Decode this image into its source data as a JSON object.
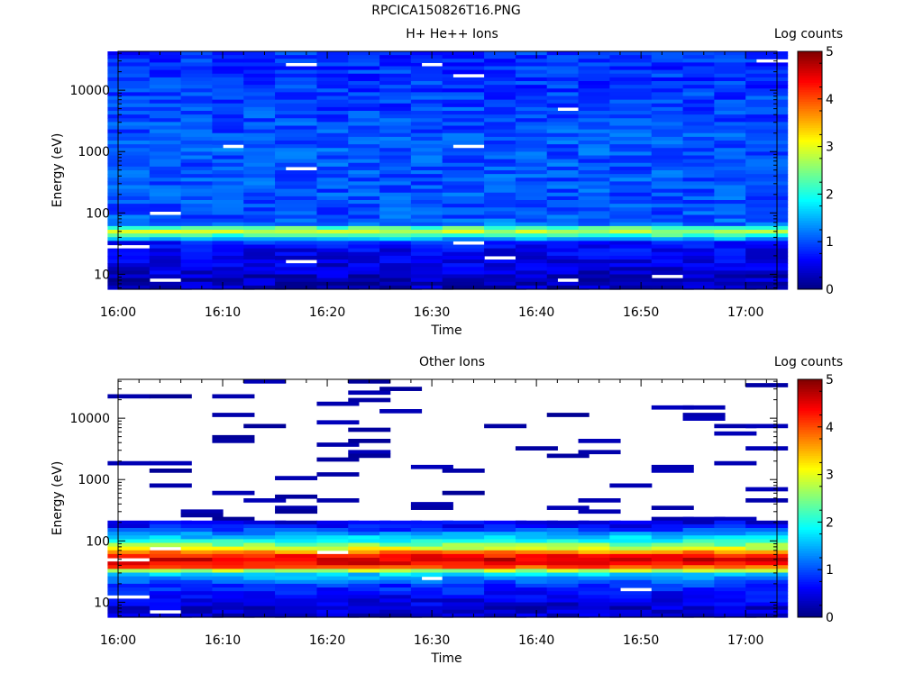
{
  "figure_title": "RPCICA150826T16.PNG",
  "chart_data": [
    {
      "type": "heatmap",
      "title": "H+ He++ Ions",
      "xlabel": "Time",
      "ylabel": "Energy (eV)",
      "x_ticks": [
        "16:00",
        "16:10",
        "16:20",
        "16:30",
        "16:40",
        "16:50",
        "17:00"
      ],
      "x_range": [
        "16:00",
        "17:03"
      ],
      "y_ticks": [
        "10",
        "100",
        "1000",
        "10000"
      ],
      "y_scale": "log",
      "y_range": [
        5.7,
        43000
      ],
      "colorbar": {
        "label": "Log counts",
        "range": [
          0,
          5
        ],
        "ticks": [
          "0",
          "1",
          "2",
          "3",
          "4",
          "5"
        ],
        "colormap": "jet"
      },
      "columns": [
        "16:01",
        "16:05",
        "16:08",
        "16:11",
        "16:14",
        "16:17",
        "16:21",
        "16:24",
        "16:27",
        "16:30",
        "16:33",
        "16:37",
        "16:40",
        "16:43",
        "16:46",
        "16:49",
        "16:53",
        "16:56",
        "16:59",
        "17:02"
      ],
      "energy_profile_log_counts": [
        {
          "energy_eV": 8,
          "level": 0.3
        },
        {
          "energy_eV": 12,
          "level": 0.45
        },
        {
          "energy_eV": 20,
          "level": 0.55
        },
        {
          "energy_eV": 32,
          "level": 0.65
        },
        {
          "energy_eV": 42,
          "level": 2.0
        },
        {
          "energy_eV": 52,
          "level": 3.0
        },
        {
          "energy_eV": 65,
          "level": 1.2
        },
        {
          "energy_eV": 90,
          "level": 1.0
        },
        {
          "energy_eV": 1000,
          "level": 1.05
        },
        {
          "energy_eV": 10000,
          "level": 0.9
        },
        {
          "energy_eV": 40000,
          "level": 0.85
        }
      ]
    },
    {
      "type": "heatmap",
      "title": "Other Ions",
      "xlabel": "Time",
      "ylabel": "Energy (eV)",
      "x_ticks": [
        "16:00",
        "16:10",
        "16:20",
        "16:30",
        "16:40",
        "16:50",
        "17:00"
      ],
      "x_range": [
        "16:00",
        "17:03"
      ],
      "y_ticks": [
        "10",
        "100",
        "1000",
        "10000"
      ],
      "y_scale": "log",
      "y_range": [
        5.7,
        43000
      ],
      "colorbar": {
        "label": "Log counts",
        "range": [
          0,
          5
        ],
        "ticks": [
          "0",
          "1",
          "2",
          "3",
          "4",
          "5"
        ],
        "colormap": "jet"
      },
      "columns": [
        "16:01",
        "16:05",
        "16:08",
        "16:11",
        "16:14",
        "16:17",
        "16:21",
        "16:24",
        "16:27",
        "16:30",
        "16:33",
        "16:37",
        "16:40",
        "16:43",
        "16:46",
        "16:49",
        "16:53",
        "16:56",
        "16:59",
        "17:02"
      ],
      "energy_profile_log_counts": [
        {
          "energy_eV": 8,
          "level": 0.4
        },
        {
          "energy_eV": 12,
          "level": 0.6
        },
        {
          "energy_eV": 20,
          "level": 0.9
        },
        {
          "energy_eV": 30,
          "level": 1.8
        },
        {
          "energy_eV": 36,
          "level": 3.8
        },
        {
          "energy_eV": 42,
          "level": 4.4
        },
        {
          "energy_eV": 52,
          "level": 4.6
        },
        {
          "energy_eV": 62,
          "level": 4.0
        },
        {
          "energy_eV": 75,
          "level": 3.0
        },
        {
          "energy_eV": 100,
          "level": 2.0
        },
        {
          "energy_eV": 140,
          "level": 1.1
        },
        {
          "energy_eV": 190,
          "level": 0.5
        }
      ],
      "sparse_above_eV": 200,
      "sparse_level": 0.1
    }
  ]
}
